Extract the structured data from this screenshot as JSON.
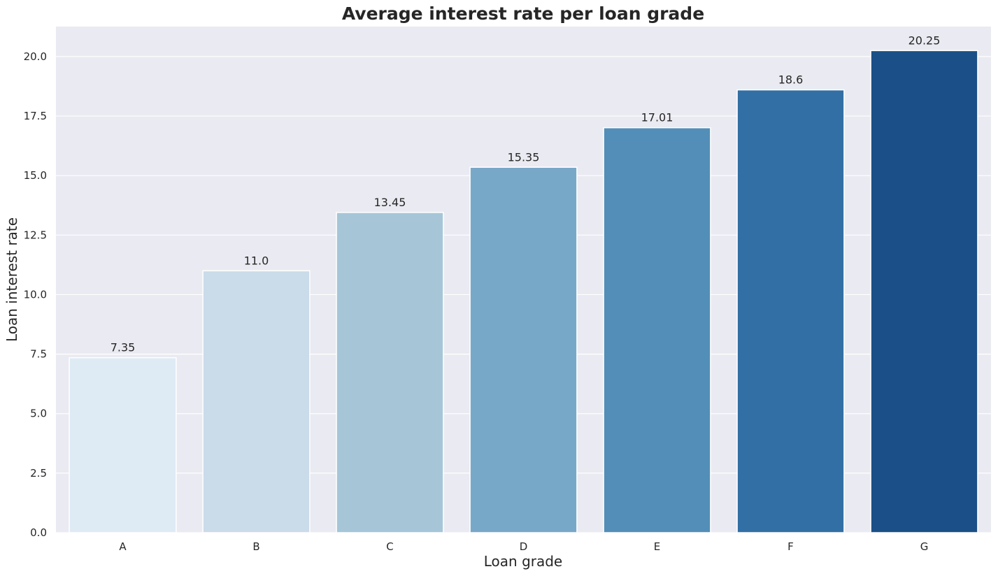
{
  "chart_data": {
    "type": "bar",
    "title": "Average interest rate per loan grade",
    "xlabel": "Loan grade",
    "ylabel": "Loan interest rate",
    "categories": [
      "A",
      "B",
      "C",
      "D",
      "E",
      "F",
      "G"
    ],
    "values": [
      7.35,
      11.0,
      13.45,
      15.35,
      17.01,
      18.6,
      20.25
    ],
    "value_labels": [
      "7.35",
      "11.0",
      "13.45",
      "15.35",
      "17.01",
      "18.6",
      "20.25"
    ],
    "ylim": [
      0,
      21.26
    ],
    "yticks": [
      0,
      2.5,
      5,
      7.5,
      10,
      12.5,
      15,
      17.5,
      20
    ],
    "ytick_labels": [
      "0.0",
      "2.5",
      "5.0",
      "7.5",
      "10.0",
      "12.5",
      "15.0",
      "17.5",
      "20.0"
    ],
    "grid": true,
    "legend": "none",
    "plot_background": "#eaeaf2",
    "grid_color": "#ffffff",
    "bar_colors": [
      "#deebf5",
      "#cadbea",
      "#a6c6d8",
      "#78a8c8",
      "#528eb7",
      "#326fa4",
      "#1a4f87"
    ]
  }
}
